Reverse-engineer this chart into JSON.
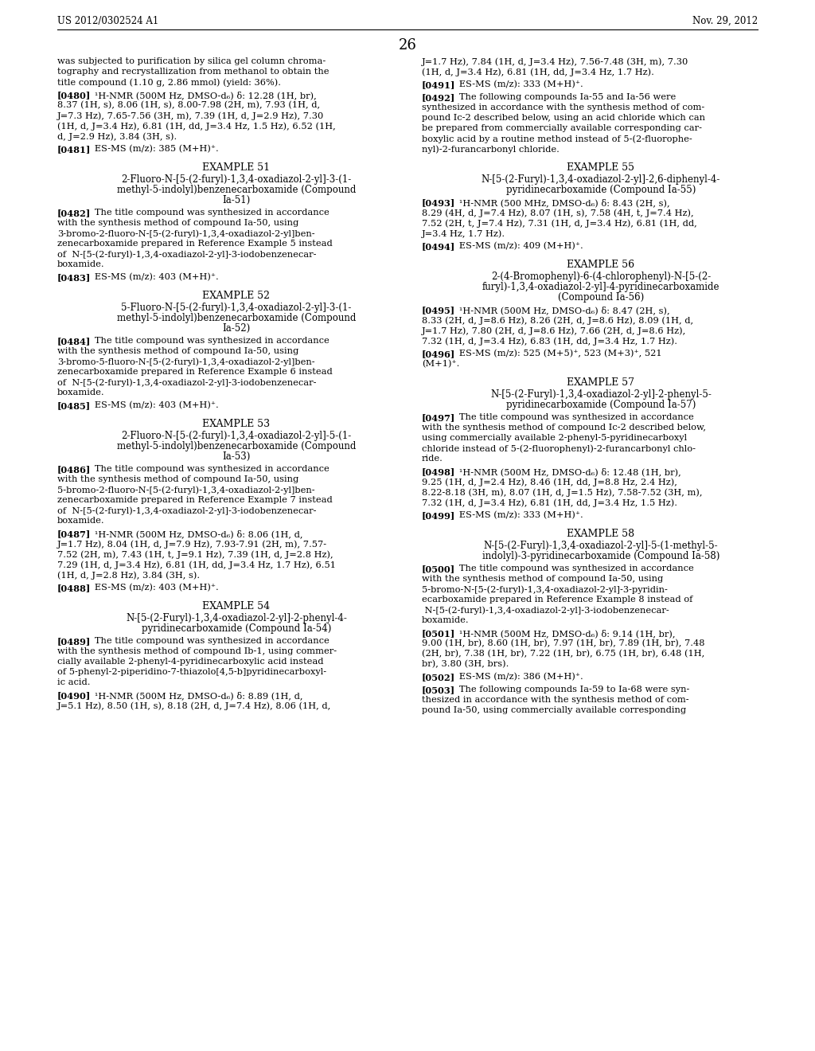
{
  "header_left": "US 2012/0302524 A1",
  "header_right": "Nov. 29, 2012",
  "page_number": "26",
  "background_color": "#ffffff",
  "left_column": [
    {
      "type": "body",
      "text": "was subjected to purification by silica gel column chroma-\ntography and recrystallization from methanol to obtain the\ntitle compound (1.10 g, 2.86 mmol) (yield: 36%)."
    },
    {
      "type": "para",
      "tag": "[0480]",
      "lines": [
        "¹H-NMR (500M Hz, DMSO-d₆) δ: 12.28 (1H, br),",
        "8.37 (1H, s), 8.06 (1H, s), 8.00-7.98 (2H, m), 7.93 (1H, d,",
        "J=7.3 Hz), 7.65-7.56 (3H, m), 7.39 (1H, d, J=2.9 Hz), 7.30",
        "(1H, d, J=3.4 Hz), 6.81 (1H, dd, J=3.4 Hz, 1.5 Hz), 6.52 (1H,",
        "d, J=2.9 Hz), 3.84 (3H, s)."
      ]
    },
    {
      "type": "para",
      "tag": "[0481]",
      "lines": [
        "ES-MS (m/z): 385 (M+H)⁺."
      ]
    },
    {
      "type": "example_title",
      "text": "EXAMPLE 51"
    },
    {
      "type": "example_subtitle",
      "lines": [
        "2-Fluoro-N-[5-(2-furyl)-1,3,4-oxadiazol-2-yl]-3-(1-",
        "methyl-5-indolyl)benzenecarboxamide (Compound",
        "Ia-51)"
      ]
    },
    {
      "type": "para",
      "tag": "[0482]",
      "lines": [
        "The title compound was synthesized in accordance",
        "with the synthesis method of compound Ia-50, using",
        "3-bromo-2-fluoro-N-[5-(2-furyl)-1,3,4-oxadiazol-2-yl]ben-",
        "zenecarboxamide prepared in Reference Example 5 instead",
        "of  N-[5-(2-furyl)-1,3,4-oxadiazol-2-yl]-3-iodobenzenecar-",
        "boxamide."
      ]
    },
    {
      "type": "para",
      "tag": "[0483]",
      "lines": [
        "ES-MS (m/z): 403 (M+H)⁺."
      ]
    },
    {
      "type": "example_title",
      "text": "EXAMPLE 52"
    },
    {
      "type": "example_subtitle",
      "lines": [
        "5-Fluoro-N-[5-(2-furyl)-1,3,4-oxadiazol-2-yl]-3-(1-",
        "methyl-5-indolyl)benzenecarboxamide (Compound",
        "Ia-52)"
      ]
    },
    {
      "type": "para",
      "tag": "[0484]",
      "lines": [
        "The title compound was synthesized in accordance",
        "with the synthesis method of compound Ia-50, using",
        "3-bromo-5-fluoro-N-[5-(2-furyl)-1,3,4-oxadiazol-2-yl]ben-",
        "zenecarboxamide prepared in Reference Example 6 instead",
        "of  N-[5-(2-furyl)-1,3,4-oxadiazol-2-yl]-3-iodobenzenecar-",
        "boxamide."
      ]
    },
    {
      "type": "para",
      "tag": "[0485]",
      "lines": [
        "ES-MS (m/z): 403 (M+H)⁺."
      ]
    },
    {
      "type": "example_title",
      "text": "EXAMPLE 53"
    },
    {
      "type": "example_subtitle",
      "lines": [
        "2-Fluoro-N-[5-(2-furyl)-1,3,4-oxadiazol-2-yl]-5-(1-",
        "methyl-5-indolyl)benzenecarboxamide (Compound",
        "Ia-53)"
      ]
    },
    {
      "type": "para",
      "tag": "[0486]",
      "lines": [
        "The title compound was synthesized in accordance",
        "with the synthesis method of compound Ia-50, using",
        "5-bromo-2-fluoro-N-[5-(2-furyl)-1,3,4-oxadiazol-2-yl]ben-",
        "zenecarboxamide prepared in Reference Example 7 instead",
        "of  N-[5-(2-furyl)-1,3,4-oxadiazol-2-yl]-3-iodobenzenecar-",
        "boxamide."
      ]
    },
    {
      "type": "para",
      "tag": "[0487]",
      "lines": [
        "¹H-NMR (500M Hz, DMSO-d₆) δ: 8.06 (1H, d,",
        "J=1.7 Hz), 8.04 (1H, d, J=7.9 Hz), 7.93-7.91 (2H, m), 7.57-",
        "7.52 (2H, m), 7.43 (1H, t, J=9.1 Hz), 7.39 (1H, d, J=2.8 Hz),",
        "7.29 (1H, d, J=3.4 Hz), 6.81 (1H, dd, J=3.4 Hz, 1.7 Hz), 6.51",
        "(1H, d, J=2.8 Hz), 3.84 (3H, s)."
      ]
    },
    {
      "type": "para",
      "tag": "[0488]",
      "lines": [
        "ES-MS (m/z): 403 (M+H)⁺."
      ]
    },
    {
      "type": "example_title",
      "text": "EXAMPLE 54"
    },
    {
      "type": "example_subtitle",
      "lines": [
        "N-[5-(2-Furyl)-1,3,4-oxadiazol-2-yl]-2-phenyl-4-",
        "pyridinecarboxamide (Compound Ia-54)"
      ]
    },
    {
      "type": "para",
      "tag": "[0489]",
      "lines": [
        "The title compound was synthesized in accordance",
        "with the synthesis method of compound Ib-1, using commer-",
        "cially available 2-phenyl-4-pyridinecarboxylic acid instead",
        "of 5-phenyl-2-piperidino-7-thiazolo[4,5-b]pyridinecarboxyl-",
        "ic acid."
      ]
    },
    {
      "type": "para",
      "tag": "[0490]",
      "lines": [
        "¹H-NMR (500M Hz, DMSO-d₆) δ: 8.89 (1H, d,",
        "J=5.1 Hz), 8.50 (1H, s), 8.18 (2H, d, J=7.4 Hz), 8.06 (1H, d,"
      ]
    }
  ],
  "right_column": [
    {
      "type": "body",
      "text": "J=1.7 Hz), 7.84 (1H, d, J=3.4 Hz), 7.56-7.48 (3H, m), 7.30\n(1H, d, J=3.4 Hz), 6.81 (1H, dd, J=3.4 Hz, 1.7 Hz)."
    },
    {
      "type": "para",
      "tag": "[0491]",
      "lines": [
        "ES-MS (m/z): 333 (M+H)⁺."
      ]
    },
    {
      "type": "para",
      "tag": "[0492]",
      "lines": [
        "The following compounds Ia-55 and Ia-56 were",
        "synthesized in accordance with the synthesis method of com-",
        "pound Ic-2 described below, using an acid chloride which can",
        "be prepared from commercially available corresponding car-",
        "boxylic acid by a routine method instead of 5-(2-fluorophe-",
        "nyl)-2-furancarbonyl chloride."
      ]
    },
    {
      "type": "example_title",
      "text": "EXAMPLE 55"
    },
    {
      "type": "example_subtitle",
      "lines": [
        "N-[5-(2-Furyl)-1,3,4-oxadiazol-2-yl]-2,6-diphenyl-4-",
        "pyridinecarboxamide (Compound Ia-55)"
      ]
    },
    {
      "type": "para",
      "tag": "[0493]",
      "lines": [
        "¹H-NMR (500 MHz, DMSO-d₆) δ: 8.43 (2H, s),",
        "8.29 (4H, d, J=7.4 Hz), 8.07 (1H, s), 7.58 (4H, t, J=7.4 Hz),",
        "7.52 (2H, t, J=7.4 Hz), 7.31 (1H, d, J=3.4 Hz), 6.81 (1H, dd,",
        "J=3.4 Hz, 1.7 Hz)."
      ]
    },
    {
      "type": "para",
      "tag": "[0494]",
      "lines": [
        "ES-MS (m/z): 409 (M+H)⁺."
      ]
    },
    {
      "type": "example_title",
      "text": "EXAMPLE 56"
    },
    {
      "type": "example_subtitle",
      "lines": [
        "2-(4-Bromophenyl)-6-(4-chlorophenyl)-N-[5-(2-",
        "furyl)-1,3,4-oxadiazol-2-yl]-4-pyridinecarboxamide",
        "(Compound Ia-56)"
      ]
    },
    {
      "type": "para",
      "tag": "[0495]",
      "lines": [
        "¹H-NMR (500M Hz, DMSO-d₆) δ: 8.47 (2H, s),",
        "8.33 (2H, d, J=8.6 Hz), 8.26 (2H, d, J=8.6 Hz), 8.09 (1H, d,",
        "J=1.7 Hz), 7.80 (2H, d, J=8.6 Hz), 7.66 (2H, d, J=8.6 Hz),",
        "7.32 (1H, d, J=3.4 Hz), 6.83 (1H, dd, J=3.4 Hz, 1.7 Hz)."
      ]
    },
    {
      "type": "para",
      "tag": "[0496]",
      "lines": [
        "ES-MS (m/z): 525 (M+5)⁺, 523 (M+3)⁺, 521",
        "(M+1)⁺."
      ]
    },
    {
      "type": "example_title",
      "text": "EXAMPLE 57"
    },
    {
      "type": "example_subtitle",
      "lines": [
        "N-[5-(2-Furyl)-1,3,4-oxadiazol-2-yl]-2-phenyl-5-",
        "pyridinecarboxamide (Compound Ia-57)"
      ]
    },
    {
      "type": "para",
      "tag": "[0497]",
      "lines": [
        "The title compound was synthesized in accordance",
        "with the synthesis method of compound Ic-2 described below,",
        "using commercially available 2-phenyl-5-pyridinecarboxyl",
        "chloride instead of 5-(2-fluorophenyl)-2-furancarbonyl chlo-",
        "ride."
      ]
    },
    {
      "type": "para",
      "tag": "[0498]",
      "lines": [
        "¹H-NMR (500M Hz, DMSO-d₆) δ: 12.48 (1H, br),",
        "9.25 (1H, d, J=2.4 Hz), 8.46 (1H, dd, J=8.8 Hz, 2.4 Hz),",
        "8.22-8.18 (3H, m), 8.07 (1H, d, J=1.5 Hz), 7.58-7.52 (3H, m),",
        "7.32 (1H, d, J=3.4 Hz), 6.81 (1H, dd, J=3.4 Hz, 1.5 Hz)."
      ]
    },
    {
      "type": "para",
      "tag": "[0499]",
      "lines": [
        "ES-MS (m/z): 333 (M+H)⁺."
      ]
    },
    {
      "type": "example_title",
      "text": "EXAMPLE 58"
    },
    {
      "type": "example_subtitle",
      "lines": [
        "N-[5-(2-Furyl)-1,3,4-oxadiazol-2-yl]-5-(1-methyl-5-",
        "indolyl)-3-pyridinecarboxamide (Compound Ia-58)"
      ]
    },
    {
      "type": "para",
      "tag": "[0500]",
      "lines": [
        "The title compound was synthesized in accordance",
        "with the synthesis method of compound Ia-50, using",
        "5-bromo-N-[5-(2-furyl)-1,3,4-oxadiazol-2-yl]-3-pyridin-",
        "ecarboxamide prepared in Reference Example 8 instead of",
        " N-[5-(2-furyl)-1,3,4-oxadiazol-2-yl]-3-iodobenzenecar-",
        "boxamide."
      ]
    },
    {
      "type": "para",
      "tag": "[0501]",
      "lines": [
        "¹H-NMR (500M Hz, DMSO-d₆) δ: 9.14 (1H, br),",
        "9.00 (1H, br), 8.60 (1H, br), 7.97 (1H, br), 7.89 (1H, br), 7.48",
        "(2H, br), 7.38 (1H, br), 7.22 (1H, br), 6.75 (1H, br), 6.48 (1H,",
        "br), 3.80 (3H, brs)."
      ]
    },
    {
      "type": "para",
      "tag": "[0502]",
      "lines": [
        "ES-MS (m/z): 386 (M+H)⁺."
      ]
    },
    {
      "type": "para",
      "tag": "[0503]",
      "lines": [
        "The following compounds Ia-59 to Ia-68 were syn-",
        "thesized in accordance with the synthesis method of com-",
        "pound Ia-50, using commercially available corresponding"
      ]
    }
  ]
}
